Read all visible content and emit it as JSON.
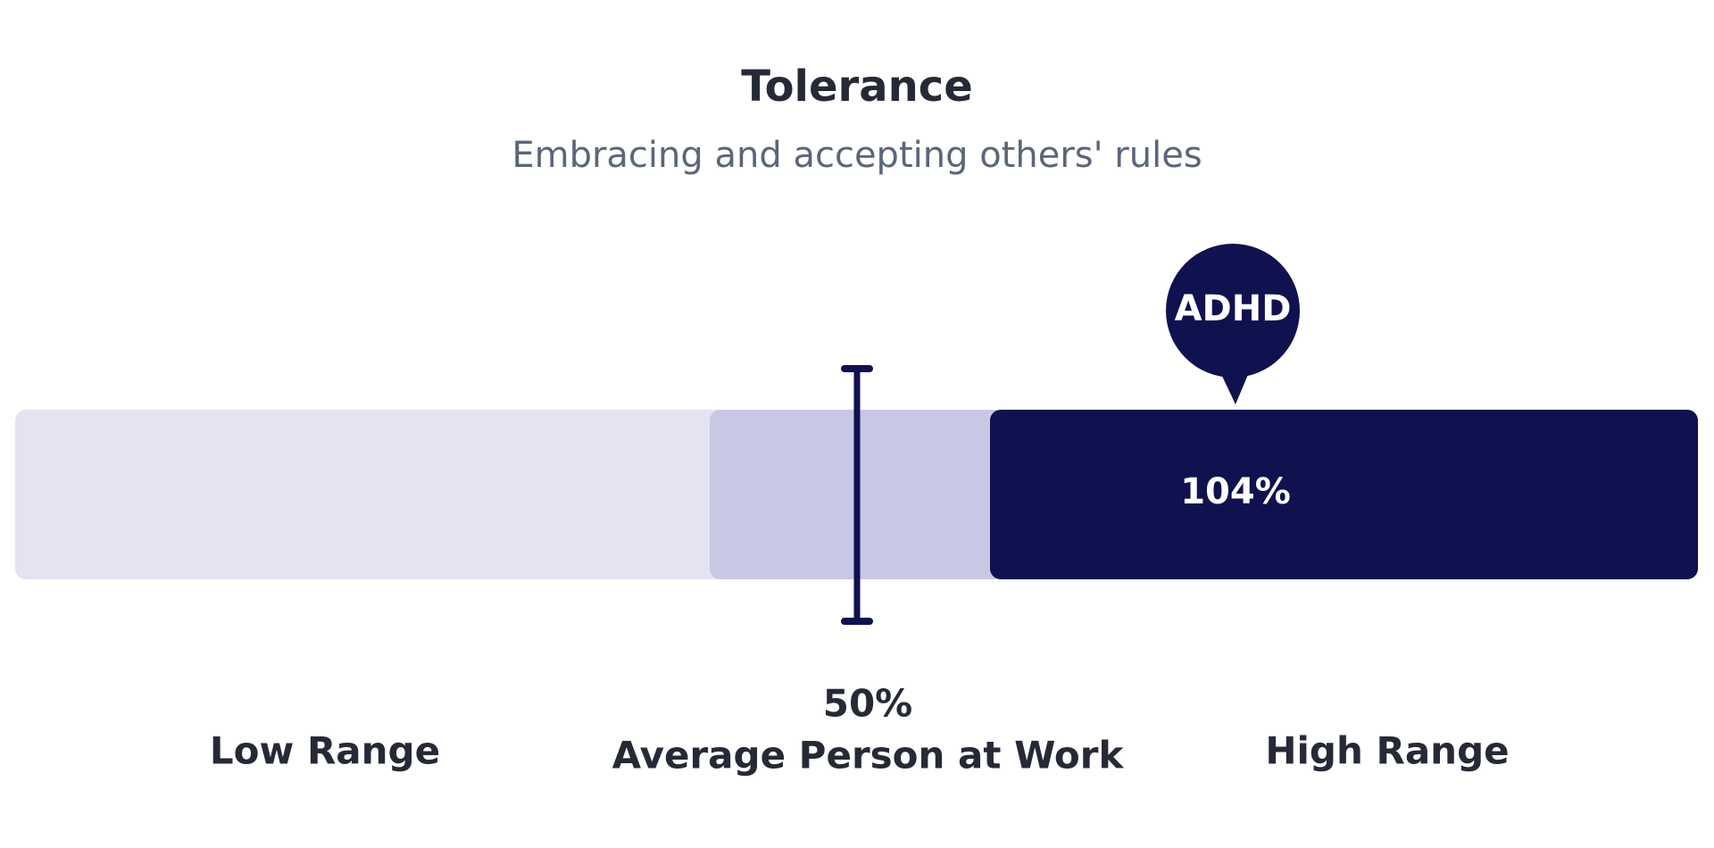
{
  "header": {
    "title": "Tolerance",
    "subtitle": "Embracing and accepting others' rules"
  },
  "marker": {
    "label": "ADHD",
    "value": "104%"
  },
  "average": {
    "value": "50%",
    "label": "Average Person at Work"
  },
  "ranges": {
    "low": "Low Range",
    "high": "High Range"
  }
}
